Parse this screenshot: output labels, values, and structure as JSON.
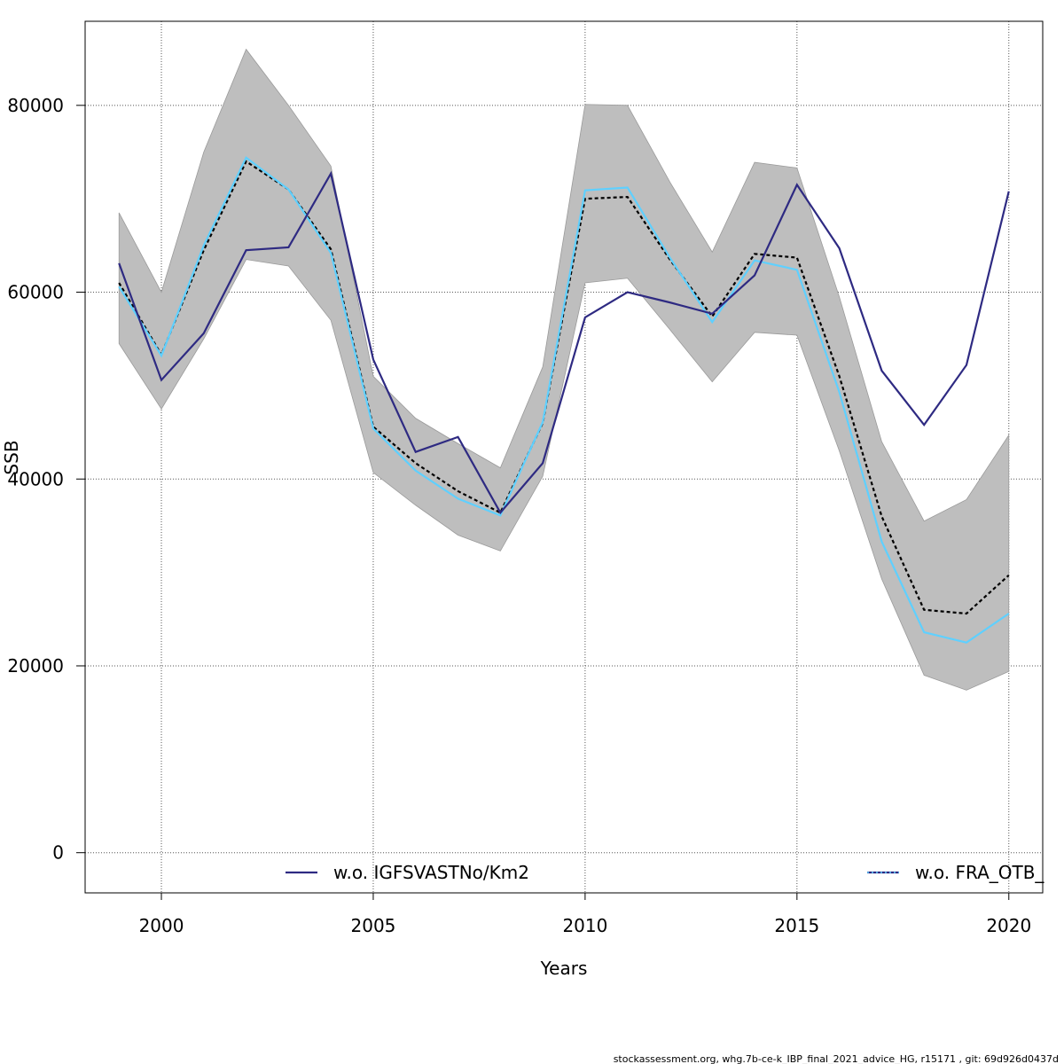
{
  "chart_data": {
    "type": "line",
    "xlabel": "Years",
    "ylabel": "SSB",
    "xlim": [
      1998.2,
      2020.8
    ],
    "ylim": [
      -4300,
      89000
    ],
    "x_ticks": [
      2000,
      2005,
      2010,
      2015,
      2020
    ],
    "y_ticks": [
      0,
      20000,
      40000,
      60000,
      80000
    ],
    "grid": true,
    "x": [
      1999,
      2000,
      2001,
      2002,
      2003,
      2004,
      2005,
      2006,
      2007,
      2008,
      2009,
      2010,
      2011,
      2012,
      2013,
      2014,
      2015,
      2016,
      2017,
      2018,
      2019,
      2020
    ],
    "band": {
      "upper": [
        68500,
        60000,
        75000,
        86000,
        80000,
        73500,
        51000,
        46500,
        43800,
        41200,
        52000,
        80100,
        80000,
        71800,
        64300,
        73900,
        73300,
        59500,
        44000,
        35500,
        37800,
        44700
      ],
      "lower": [
        54500,
        47500,
        55000,
        63500,
        62800,
        57000,
        40700,
        37200,
        34000,
        32300,
        40300,
        61000,
        61500,
        56000,
        50400,
        55700,
        55400,
        43000,
        29300,
        19000,
        17400,
        19400
      ],
      "color": "#bebebe"
    },
    "series": [
      {
        "name": "",
        "color": "#000000",
        "style": "dashed",
        "values": [
          61000,
          53300,
          64500,
          74000,
          71000,
          64600,
          45600,
          41700,
          38700,
          36400,
          46000,
          70000,
          70200,
          63500,
          57400,
          64100,
          63700,
          51000,
          36000,
          26000,
          25600,
          29700
        ]
      },
      {
        "name": "",
        "color": "#5fd0ff",
        "style": "solid",
        "values": [
          60600,
          53200,
          65000,
          74400,
          71000,
          64200,
          45400,
          40900,
          37900,
          36100,
          46100,
          70900,
          71200,
          63700,
          56800,
          63400,
          62400,
          49300,
          33300,
          23600,
          22500,
          25600
        ]
      },
      {
        "name": "w.o. IGFSVASTNo/Km2",
        "color": "#2e2a82",
        "style": "solid",
        "values": [
          63100,
          50600,
          55600,
          64500,
          64800,
          72700,
          52800,
          42900,
          44500,
          36400,
          41700,
          57300,
          60000,
          58900,
          57700,
          61800,
          71500,
          64700,
          51600,
          45800,
          52200,
          70800
        ]
      }
    ],
    "legend": [
      {
        "label": "w.o. IGFSVASTNo/Km2",
        "color": "#2e2a82",
        "style": "solid",
        "position": "bottom-left"
      },
      {
        "label": "w.o. FRA_OTB_",
        "color": "#5fd0ff",
        "style": "dotted",
        "position": "bottom-right"
      }
    ]
  },
  "footer": "stockassessment.org, whg.7b-ce-k_IBP_final_2021_advice_HG, r15171 , git: 69d926d0437d"
}
